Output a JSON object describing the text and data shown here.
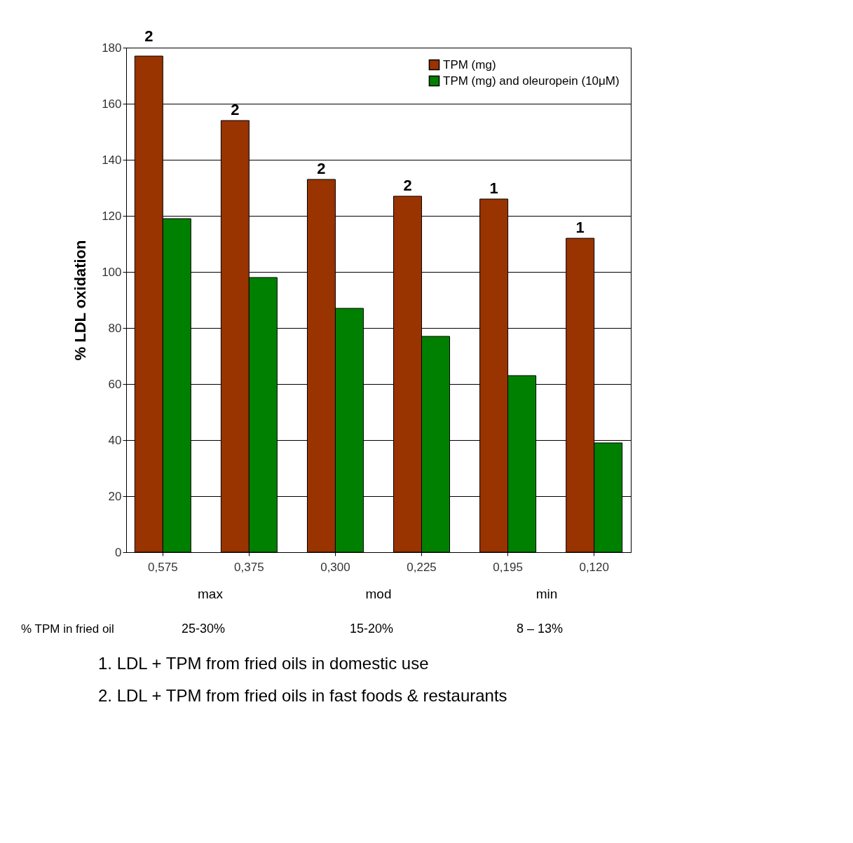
{
  "chart_data": {
    "type": "bar",
    "ylabel": "% LDL oxidation",
    "categories": [
      "0,575",
      "0,375",
      "0,300",
      "0,225",
      "0,195",
      "0,120"
    ],
    "series": [
      {
        "name": "TPM (mg)",
        "color": "#993300",
        "values": [
          177,
          154,
          133,
          127,
          126,
          112
        ]
      },
      {
        "name": "TPM (mg) and oleuropein (10μM)",
        "color": "#008000",
        "values": [
          119,
          98,
          87,
          77,
          63,
          39
        ]
      }
    ],
    "ylim": [
      0,
      180
    ],
    "yticks": [
      0,
      20,
      40,
      60,
      80,
      100,
      120,
      140,
      160,
      180
    ],
    "grid": "y",
    "legend": "top right",
    "annotations": [
      {
        "text": "2",
        "x": "0,575",
        "y": 177
      },
      {
        "text": "2",
        "x": "0,375",
        "y": 154
      },
      {
        "text": "2",
        "x": "0,300",
        "y": 133
      },
      {
        "text": "2",
        "x": "0,225",
        "y": 127
      },
      {
        "text": "1",
        "x": "0,195",
        "y": 126
      },
      {
        "text": "1",
        "x": "0,120",
        "y": 112
      },
      "max",
      "mod",
      "min",
      "% TPM in fried oil",
      "25-30%",
      "15-20%",
      "8 – 13%",
      "1. LDL + TPM from fried oils in domestic use",
      "2. LDL + TPM from fried oils in fast foods & restaurants"
    ]
  }
}
